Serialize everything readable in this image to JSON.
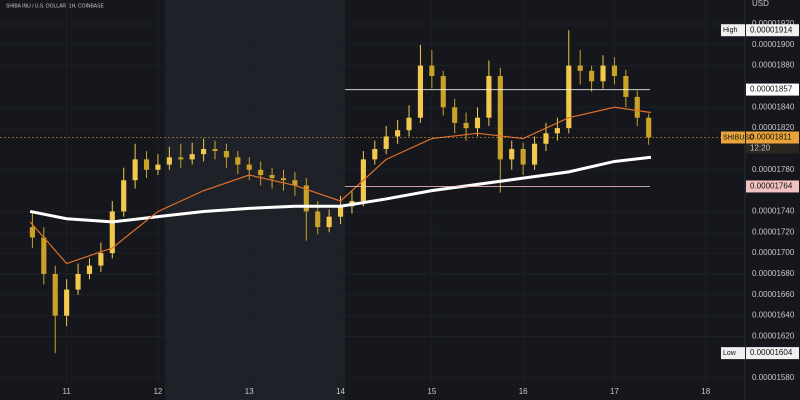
{
  "chart_data": {
    "type": "candlestick",
    "title": "SHIBA INU / U.S. DOLLAR, 1H, COINBASE",
    "y_axis_label": "USD",
    "x": [
      10.625,
      10.75,
      10.875,
      11,
      11.125,
      11.25,
      11.375,
      11.5,
      11.625,
      11.75,
      11.875,
      12,
      12.125,
      12.25,
      12.375,
      12.5,
      12.625,
      12.75,
      12.875,
      13,
      13.125,
      13.25,
      13.375,
      13.5,
      13.625,
      13.75,
      13.875,
      14,
      14.125,
      14.25,
      14.375,
      14.5,
      14.625,
      14.75,
      14.875,
      15,
      15.125,
      15.25,
      15.375,
      15.5,
      15.625,
      15.75,
      15.875,
      16,
      16.125,
      16.25,
      16.375,
      16.5,
      16.625,
      16.75,
      16.875,
      17,
      17.125,
      17.25,
      17.375
    ],
    "open": [
      1.725e-05,
      1.715e-05,
      1.68e-05,
      1.64e-05,
      1.665e-05,
      1.68e-05,
      1.688e-05,
      1.7e-05,
      1.74e-05,
      1.77e-05,
      1.79e-05,
      1.78e-05,
      1.785e-05,
      1.792e-05,
      1.79e-05,
      1.795e-05,
      1.8e-05,
      1.798e-05,
      1.792e-05,
      1.785e-05,
      1.78e-05,
      1.775e-05,
      1.772e-05,
      1.77e-05,
      1.765e-05,
      1.74e-05,
      1.725e-05,
      1.735e-05,
      1.745e-05,
      1.75e-05,
      1.79e-05,
      1.8e-05,
      1.812e-05,
      1.818e-05,
      1.83e-05,
      1.88e-05,
      1.87e-05,
      1.84e-05,
      1.825e-05,
      1.82e-05,
      1.83e-05,
      1.87e-05,
      1.79e-05,
      1.8e-05,
      1.785e-05,
      1.805e-05,
      1.815e-05,
      1.82e-05,
      1.88e-05,
      1.875e-05,
      1.865e-05,
      1.88e-05,
      1.87e-05,
      1.85e-05,
      1.83e-05
    ],
    "high": [
      1.74e-05,
      1.725e-05,
      1.688e-05,
      1.675e-05,
      1.69e-05,
      1.695e-05,
      1.71e-05,
      1.75e-05,
      1.782e-05,
      1.805e-05,
      1.798e-05,
      1.795e-05,
      1.802e-05,
      1.805e-05,
      1.806e-05,
      1.81e-05,
      1.808e-05,
      1.805e-05,
      1.798e-05,
      1.792e-05,
      1.788e-05,
      1.782e-05,
      1.78e-05,
      1.778e-05,
      1.772e-05,
      1.75e-05,
      1.742e-05,
      1.755e-05,
      1.76e-05,
      1.798e-05,
      1.808e-05,
      1.822e-05,
      1.828e-05,
      1.842e-05,
      1.9e-05,
      1.895e-05,
      1.875e-05,
      1.848e-05,
      1.835e-05,
      1.84e-05,
      1.885e-05,
      1.878e-05,
      1.808e-05,
      1.806e-05,
      1.812e-05,
      1.825e-05,
      1.83e-05,
      1.914e-05,
      1.895e-05,
      1.88e-05,
      1.89e-05,
      1.888e-05,
      1.876e-05,
      1.856e-05,
      1.834e-05
    ],
    "low": [
      1.705e-05,
      1.67e-05,
      1.604e-05,
      1.63e-05,
      1.66e-05,
      1.675e-05,
      1.682e-05,
      1.695e-05,
      1.735e-05,
      1.762e-05,
      1.772e-05,
      1.775e-05,
      1.78e-05,
      1.782e-05,
      1.785e-05,
      1.788e-05,
      1.79e-05,
      1.782e-05,
      1.776e-05,
      1.77e-05,
      1.765e-05,
      1.762e-05,
      1.76e-05,
      1.755e-05,
      1.712e-05,
      1.718e-05,
      1.72e-05,
      1.728e-05,
      1.738e-05,
      1.745e-05,
      1.785e-05,
      1.795e-05,
      1.805e-05,
      1.812e-05,
      1.825e-05,
      1.858e-05,
      1.832e-05,
      1.815e-05,
      1.808e-05,
      1.812e-05,
      1.822e-05,
      1.758e-05,
      1.78e-05,
      1.775e-05,
      1.78e-05,
      1.798e-05,
      1.808e-05,
      1.815e-05,
      1.862e-05,
      1.855e-05,
      1.858e-05,
      1.862e-05,
      1.84e-05,
      1.822e-05,
      1.804e-05
    ],
    "close": [
      1.715e-05,
      1.68e-05,
      1.64e-05,
      1.665e-05,
      1.68e-05,
      1.688e-05,
      1.7e-05,
      1.74e-05,
      1.77e-05,
      1.79e-05,
      1.78e-05,
      1.785e-05,
      1.792e-05,
      1.79e-05,
      1.795e-05,
      1.8e-05,
      1.798e-05,
      1.792e-05,
      1.785e-05,
      1.78e-05,
      1.775e-05,
      1.772e-05,
      1.77e-05,
      1.765e-05,
      1.74e-05,
      1.725e-05,
      1.735e-05,
      1.745e-05,
      1.75e-05,
      1.79e-05,
      1.8e-05,
      1.812e-05,
      1.818e-05,
      1.83e-05,
      1.88e-05,
      1.87e-05,
      1.84e-05,
      1.825e-05,
      1.82e-05,
      1.83e-05,
      1.87e-05,
      1.79e-05,
      1.8e-05,
      1.785e-05,
      1.805e-05,
      1.815e-05,
      1.82e-05,
      1.88e-05,
      1.875e-05,
      1.865e-05,
      1.88e-05,
      1.87e-05,
      1.85e-05,
      1.83e-05,
      1.811e-05
    ],
    "up_color": "#f2c94c",
    "down_color": "#c9a227",
    "lines": [
      {
        "color": "#ffffff",
        "x": [
          10.6,
          11,
          11.5,
          12,
          12.5,
          13,
          13.5,
          14,
          14.5,
          15,
          15.5,
          16,
          16.5,
          17,
          17.4
        ],
        "values": [
          1.74e-05,
          1.733e-05,
          1.73e-05,
          1.735e-05,
          1.74e-05,
          1.743e-05,
          1.745e-05,
          1.745e-05,
          1.752e-05,
          1.76e-05,
          1.766e-05,
          1.772e-05,
          1.778e-05,
          1.788e-05,
          1.792e-05
        ]
      },
      {
        "color": "#e0702a",
        "x": [
          10.6,
          11,
          11.5,
          12,
          12.5,
          13,
          13.5,
          14,
          14.5,
          15,
          15.5,
          16,
          16.5,
          17,
          17.4
        ],
        "values": [
          1.73e-05,
          1.69e-05,
          1.705e-05,
          1.74e-05,
          1.76e-05,
          1.775e-05,
          1.765e-05,
          1.75e-05,
          1.79e-05,
          1.81e-05,
          1.815e-05,
          1.81e-05,
          1.83e-05,
          1.84e-05,
          1.835e-05
        ]
      }
    ],
    "markers": [
      {
        "name": "High",
        "value": 1.914e-05,
        "color": "#f0f0f0"
      },
      {
        "value": 1.857e-05,
        "color": "#ffffff"
      },
      {
        "name": "SHIBUSD",
        "value": 1.811e-05,
        "color": "#e8a33a",
        "countdown": "12:20"
      },
      {
        "value": 1.764e-05,
        "color": "#f2c2c2"
      },
      {
        "name": "Low",
        "value": 1.604e-05,
        "color": "#f0f0f0"
      }
    ],
    "xlim": [
      10.27,
      18.43
    ],
    "xticks": [
      11,
      12,
      13,
      14,
      15,
      16,
      17,
      18
    ],
    "ylim": [
      1.559e-05,
      1.943e-05
    ],
    "yticks": [
      {
        "value": 1.58e-05,
        "label": "0.00001580"
      },
      {
        "value": 1.62e-05,
        "label": "0.00001620"
      },
      {
        "value": 1.64e-05,
        "label": "0.00001640"
      },
      {
        "value": 1.66e-05,
        "label": "0.00001660"
      },
      {
        "value": 1.68e-05,
        "label": "0.00001680"
      },
      {
        "value": 1.7e-05,
        "label": "0.00001700"
      },
      {
        "value": 1.72e-05,
        "label": "0.00001720"
      },
      {
        "value": 1.74e-05,
        "label": "0.00001740"
      },
      {
        "value": 1.78e-05,
        "label": "0.00001780"
      },
      {
        "value": 1.82e-05,
        "label": "0.00001820"
      },
      {
        "value": 1.84e-05,
        "label": "0.00001840"
      },
      {
        "value": 1.88e-05,
        "label": "0.00001880"
      },
      {
        "value": 1.9e-05,
        "label": "0.00001900"
      },
      {
        "value": 1.92e-05,
        "label": "0.00001920"
      }
    ],
    "grid": true
  }
}
